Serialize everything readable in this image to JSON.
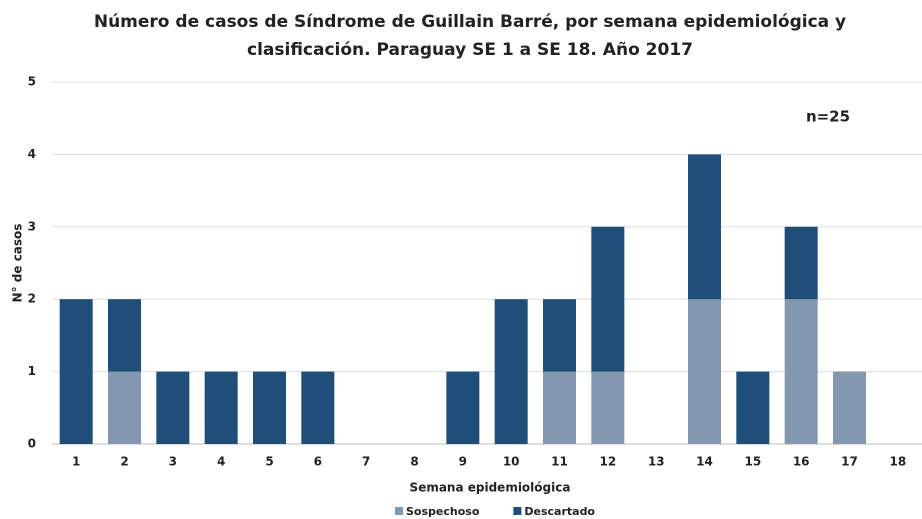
{
  "chart_data": {
    "type": "stacked_bar",
    "title": [
      "Número de casos de Síndrome de Guillain Barré, por  semana epidemiológica  y",
      "clasificación. Paraguay SE 1 a SE 18. Año 2017"
    ],
    "annotation": "n=25",
    "x_label": "Semana epidemiológica",
    "y_label": "N° de casos",
    "categories": [
      "1",
      "2",
      "3",
      "4",
      "5",
      "6",
      "7",
      "8",
      "9",
      "10",
      "11",
      "12",
      "13",
      "14",
      "15",
      "16",
      "17",
      "18"
    ],
    "series": [
      {
        "name": "Sospechoso",
        "color": "#8497b0",
        "values": [
          0,
          1,
          0,
          0,
          0,
          0,
          0,
          0,
          0,
          0,
          1,
          1,
          0,
          2,
          0,
          2,
          1,
          0
        ]
      },
      {
        "name": "Descartado",
        "color": "#1f4e79",
        "values": [
          2,
          1,
          1,
          1,
          1,
          1,
          0,
          0,
          1,
          2,
          1,
          2,
          0,
          2,
          1,
          1,
          0,
          0
        ]
      }
    ],
    "ylim": [
      0,
      5
    ],
    "yticks": [
      0,
      1,
      2,
      3,
      4,
      5
    ],
    "grid": true,
    "legend": "bottom"
  }
}
